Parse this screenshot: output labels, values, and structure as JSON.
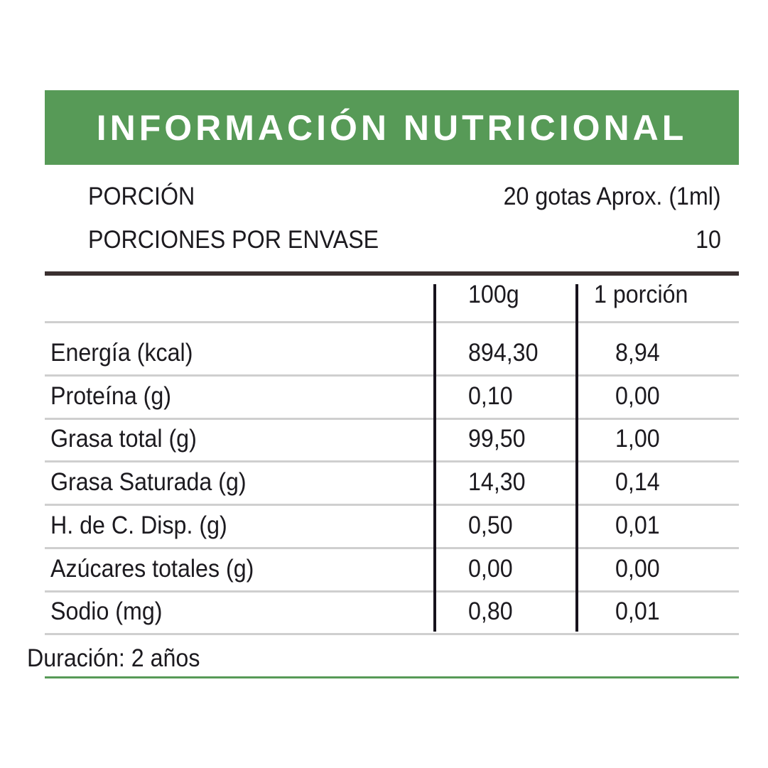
{
  "colors": {
    "brand_green": "#579a57",
    "rule_dark": "#3a3030"
  },
  "title": "INFORMACIÓN NUTRICIONAL",
  "serving": {
    "portion_label": "PORCIÓN",
    "portion_value": "20 gotas Aprox. (1ml)",
    "servings_label": "PORCIONES POR ENVASE",
    "servings_value": "10"
  },
  "table": {
    "headers": [
      "100g",
      "1 porción"
    ],
    "rows": [
      {
        "label": "Energía (kcal)",
        "per100": "894,30",
        "per_portion": "8,94"
      },
      {
        "label": "Proteína (g)",
        "per100": "0,10",
        "per_portion": "0,00"
      },
      {
        "label": "Grasa total (g)",
        "per100": "99,50",
        "per_portion": "1,00"
      },
      {
        "label": "Grasa Saturada (g)",
        "per100": "14,30",
        "per_portion": "0,14"
      },
      {
        "label": "H. de C. Disp. (g)",
        "per100": "0,50",
        "per_portion": "0,01"
      },
      {
        "label": "Azúcares totales (g)",
        "per100": "0,00",
        "per_portion": "0,00"
      },
      {
        "label": "Sodio (mg)",
        "per100": "0,80",
        "per_portion": "0,01"
      }
    ]
  },
  "footer": "Duración: 2 años"
}
